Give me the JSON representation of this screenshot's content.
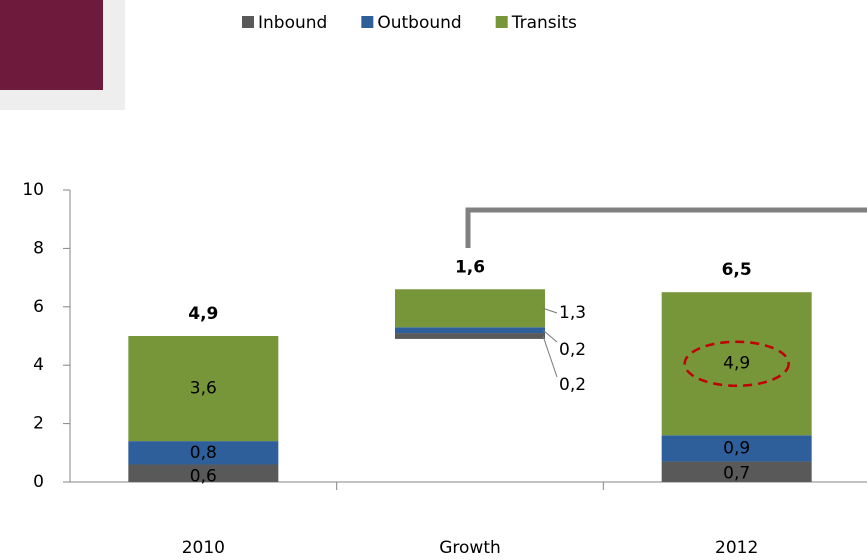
{
  "chart_data": {
    "type": "waterfall",
    "categories": [
      "2010",
      "Growth",
      "2012"
    ],
    "series": [
      {
        "name": "Inbound",
        "color": "#595959",
        "values": [
          0.6,
          0.2,
          0.7
        ],
        "value_labels": [
          "0,6",
          "0,2",
          "0,7"
        ]
      },
      {
        "name": "Outbound",
        "color": "#2e5f9a",
        "values": [
          0.8,
          0.2,
          0.9
        ],
        "value_labels": [
          "0,8",
          "0,2",
          "0,9"
        ]
      },
      {
        "name": "Transits",
        "color": "#77963a",
        "values": [
          3.6,
          1.3,
          4.9
        ],
        "value_labels": [
          "3,6",
          "1,3",
          "4,9"
        ]
      }
    ],
    "totals": [
      4.9,
      1.6,
      6.5
    ],
    "total_labels": [
      "4,9",
      "1,6",
      "6,5"
    ],
    "ylim": [
      0,
      10
    ],
    "yticks": [
      0,
      2,
      4,
      6,
      8,
      10
    ]
  }
}
